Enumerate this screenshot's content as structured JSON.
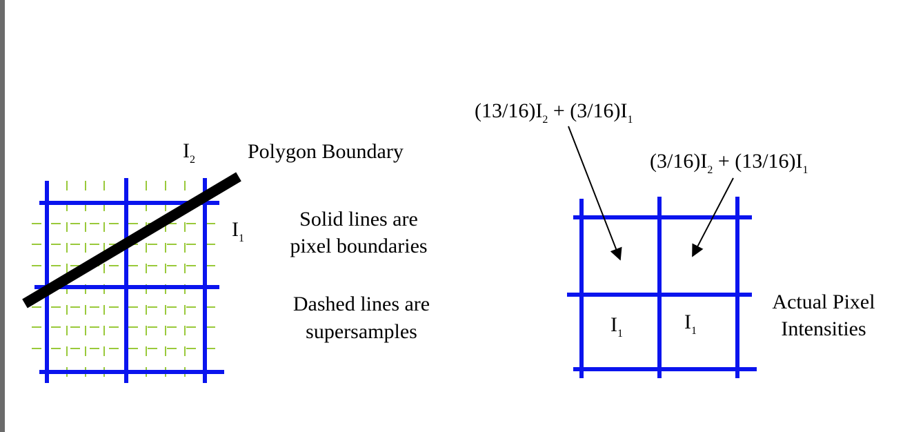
{
  "colors": {
    "pixel_boundary": "#0a14ee",
    "supersample": "#99c93a",
    "polygon_edge": "#000000",
    "scrollbar": "#6b6b6b"
  },
  "left_diagram": {
    "label_i2": {
      "base": "I",
      "sub": "2"
    },
    "label_i1": {
      "base": "I",
      "sub": "1"
    },
    "polygon_boundary": "Polygon Boundary",
    "solid_lines_line1": "Solid lines are",
    "solid_lines_line2": "pixel boundaries",
    "dashed_lines_line1": "Dashed  lines are",
    "dashed_lines_line2": "supersamples"
  },
  "right_diagram": {
    "formula_top": {
      "part1": "(13/16)I",
      "sub1": "2",
      "part2": " + (3/16)I",
      "sub2": "1"
    },
    "formula_right": {
      "part1": "(3/16)I",
      "sub1": "2",
      "part2": " + (13/16)I",
      "sub2": "1"
    },
    "cell_bottom_left": {
      "base": "I",
      "sub": "1"
    },
    "cell_bottom_right": {
      "base": "I",
      "sub": "1"
    },
    "actual_line1": "Actual Pixel",
    "actual_line2": "Intensities"
  }
}
